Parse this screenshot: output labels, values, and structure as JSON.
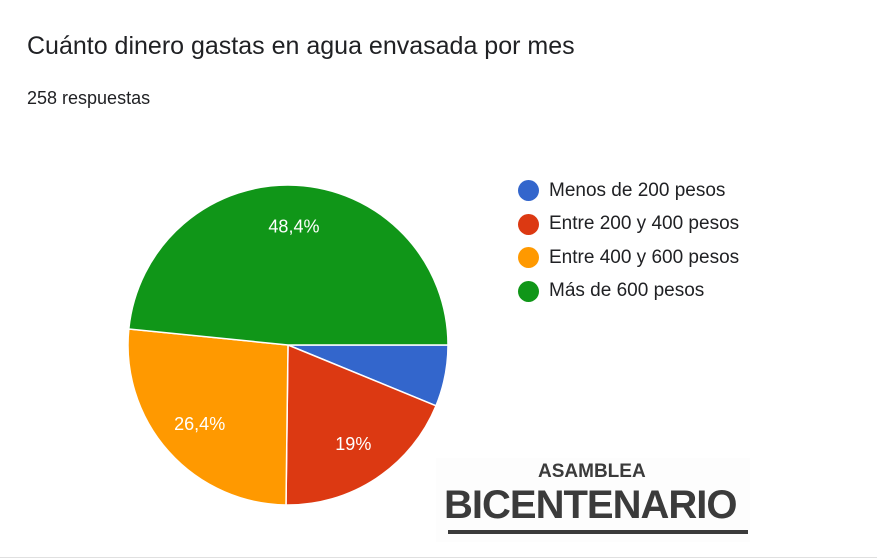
{
  "chart_data": {
    "type": "pie",
    "title": "Cuánto dinero gastas en agua envasada por mes",
    "subtitle": "258 respuestas",
    "categories": [
      "Menos de 200 pesos",
      "Entre 200 y 400 pesos",
      "Entre 400 y 600 pesos",
      "Más de 600 pesos"
    ],
    "values": [
      6.2,
      19,
      26.4,
      48.4
    ],
    "labels": [
      "",
      "19%",
      "26,4%",
      "48,4%"
    ],
    "colors": [
      "#3366cc",
      "#dc3912",
      "#ff9900",
      "#109618"
    ],
    "legend_position": "right"
  },
  "logo": {
    "top": "ASAMBLEA",
    "bottom": "BICENTENARIO"
  }
}
